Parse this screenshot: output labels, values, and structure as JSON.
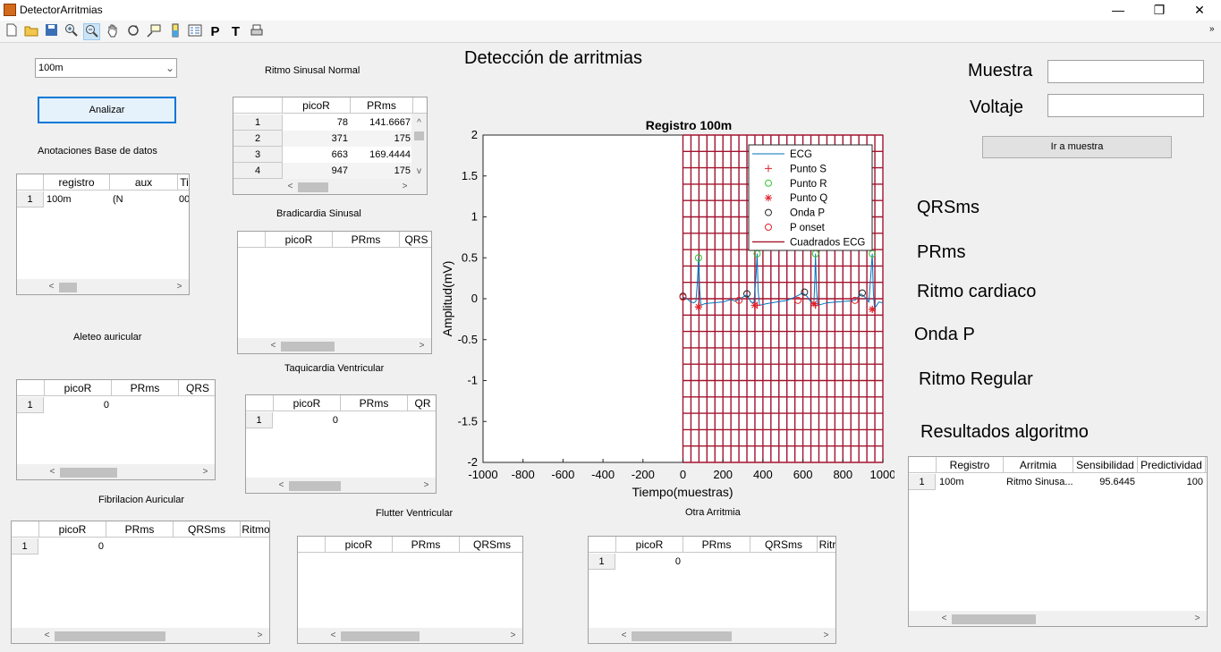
{
  "window": {
    "title": "DetectorArritmias",
    "minimize": "—",
    "restore": "❐",
    "close": "✕"
  },
  "toolbar": {
    "text_tool_p": "P",
    "text_tool_t": "T",
    "overflow": "»"
  },
  "select": {
    "value": "100m",
    "chevron": "⌄"
  },
  "analizar": "Analizar",
  "anotaciones": {
    "title": "Anotaciones Base de datos",
    "columns": [
      "registro",
      "aux",
      "Ti"
    ],
    "rows": [
      [
        "1",
        "100m",
        "(N",
        "00"
      ]
    ]
  },
  "ritmo_sinusal": {
    "title": "Ritmo Sinusal Normal",
    "columns": [
      "picoR",
      "PRms"
    ],
    "rows": [
      [
        "1",
        "78",
        "141.6667"
      ],
      [
        "2",
        "371",
        "175"
      ],
      [
        "3",
        "663",
        "169.4444"
      ],
      [
        "4",
        "947",
        "175"
      ]
    ]
  },
  "bradicardia": {
    "title": "Bradicardia Sinusal",
    "columns": [
      "picoR",
      "PRms",
      "QRS"
    ]
  },
  "aleteo": {
    "title": "Aleteo auricular",
    "columns": [
      "picoR",
      "PRms",
      "QRS"
    ],
    "rows": [
      [
        "1",
        "0"
      ]
    ]
  },
  "taquicardia": {
    "title": "Taquicardia Ventricular",
    "columns": [
      "picoR",
      "PRms",
      "QR"
    ],
    "rows": [
      [
        "1",
        "0"
      ]
    ]
  },
  "fibrilacion": {
    "title": "Fibrilacion Auricular",
    "columns": [
      "picoR",
      "PRms",
      "QRSms",
      "Ritmo"
    ],
    "rows": [
      [
        "1",
        "0"
      ]
    ]
  },
  "flutter": {
    "title": "Flutter Ventricular",
    "columns": [
      "picoR",
      "PRms",
      "QRSms"
    ]
  },
  "otra": {
    "title": "Otra Arritmia",
    "columns": [
      "picoR",
      "PRms",
      "QRSms",
      "Ritr"
    ],
    "rows": [
      [
        "1",
        "0"
      ]
    ]
  },
  "header_title": "Detección de arritmias",
  "muestra_label": "Muestra",
  "voltaje_label": "Voltaje",
  "muestra_value": "",
  "voltaje_value": "",
  "ir_a_muestra": "Ir a muestra",
  "qrs_label": "QRSms",
  "pr_label": "PRms",
  "ritmo_cardiaco_label": "Ritmo cardiaco",
  "onda_p_label": "Onda P",
  "ritmo_regular_label": "Ritmo Regular",
  "resultados_label": "Resultados algoritmo",
  "resultados": {
    "columns": [
      "Registro",
      "Arritmia",
      "Sensibilidad",
      "Predictividad"
    ],
    "rows": [
      [
        "1",
        "100m",
        "Ritmo Sinusa...",
        "95.6445",
        "100"
      ]
    ]
  },
  "scroll": {
    "left": "<",
    "right": ">",
    "up": "^",
    "down": "v"
  },
  "chart_data": {
    "type": "line",
    "title": "Registro 100m",
    "xlabel": "Tiempo(muestras)",
    "ylabel": "Amplitud(mV)",
    "xlim": [
      -1000,
      1000
    ],
    "ylim": [
      -2,
      2
    ],
    "xticks": [
      "-1000",
      "-800",
      "-600",
      "-400",
      "-200",
      "0",
      "200",
      "400",
      "600",
      "800",
      "1000"
    ],
    "yticks": [
      "2",
      "1.5",
      "1",
      "0.5",
      "0",
      "-0.5",
      "-1",
      "-1.5",
      "-2"
    ],
    "grid_color": "#a2142f",
    "ecg_color": "#0072bd",
    "legend": [
      "ECG",
      "Punto S",
      "Punto R",
      "Punto Q",
      "Onda P",
      "P onset",
      "Cuadrados ECG"
    ],
    "legend_placement": "top-right",
    "ecg": [
      [
        0,
        0.02
      ],
      [
        20,
        0.0
      ],
      [
        40,
        -0.04
      ],
      [
        55,
        -0.05
      ],
      [
        65,
        -0.03
      ],
      [
        72,
        0.2
      ],
      [
        78,
        0.5
      ],
      [
        84,
        0.1
      ],
      [
        90,
        -0.08
      ],
      [
        110,
        -0.06
      ],
      [
        150,
        -0.05
      ],
      [
        200,
        -0.04
      ],
      [
        240,
        -0.01
      ],
      [
        260,
        -0.03
      ],
      [
        300,
        0.02
      ],
      [
        320,
        0.05
      ],
      [
        340,
        -0.04
      ],
      [
        355,
        -0.05
      ],
      [
        366,
        0.3
      ],
      [
        371,
        0.55
      ],
      [
        376,
        0.1
      ],
      [
        383,
        -0.08
      ],
      [
        420,
        -0.06
      ],
      [
        470,
        -0.04
      ],
      [
        520,
        -0.02
      ],
      [
        560,
        0.02
      ],
      [
        600,
        0.07
      ],
      [
        620,
        0.03
      ],
      [
        640,
        -0.04
      ],
      [
        655,
        -0.05
      ],
      [
        660,
        0.25
      ],
      [
        663,
        0.55
      ],
      [
        668,
        0.1
      ],
      [
        675,
        -0.08
      ],
      [
        720,
        -0.05
      ],
      [
        770,
        -0.04
      ],
      [
        820,
        -0.03
      ],
      [
        860,
        -0.02
      ],
      [
        890,
        0.06
      ],
      [
        910,
        0.02
      ],
      [
        930,
        -0.04
      ],
      [
        940,
        0.3
      ],
      [
        947,
        0.55
      ],
      [
        952,
        0.1
      ],
      [
        958,
        -0.12
      ],
      [
        980,
        -0.04
      ],
      [
        1000,
        -0.05
      ]
    ],
    "punto_s": [
      [
        78,
        -0.1
      ],
      [
        371,
        -0.08
      ],
      [
        663,
        -0.08
      ],
      [
        947,
        -0.13
      ]
    ],
    "punto_r": [
      [
        78,
        0.5
      ],
      [
        371,
        0.55
      ],
      [
        663,
        0.55
      ],
      [
        947,
        0.55
      ]
    ],
    "punto_q": [
      [
        78,
        -0.1
      ],
      [
        358,
        -0.08
      ],
      [
        655,
        -0.06
      ],
      [
        947,
        -0.13
      ]
    ],
    "onda_p": [
      [
        0,
        0.03
      ],
      [
        320,
        0.06
      ],
      [
        608,
        0.08
      ],
      [
        897,
        0.07
      ]
    ],
    "p_onset": [
      [
        0,
        0.02
      ],
      [
        280,
        -0.02
      ],
      [
        575,
        -0.02
      ],
      [
        860,
        -0.02
      ]
    ]
  }
}
